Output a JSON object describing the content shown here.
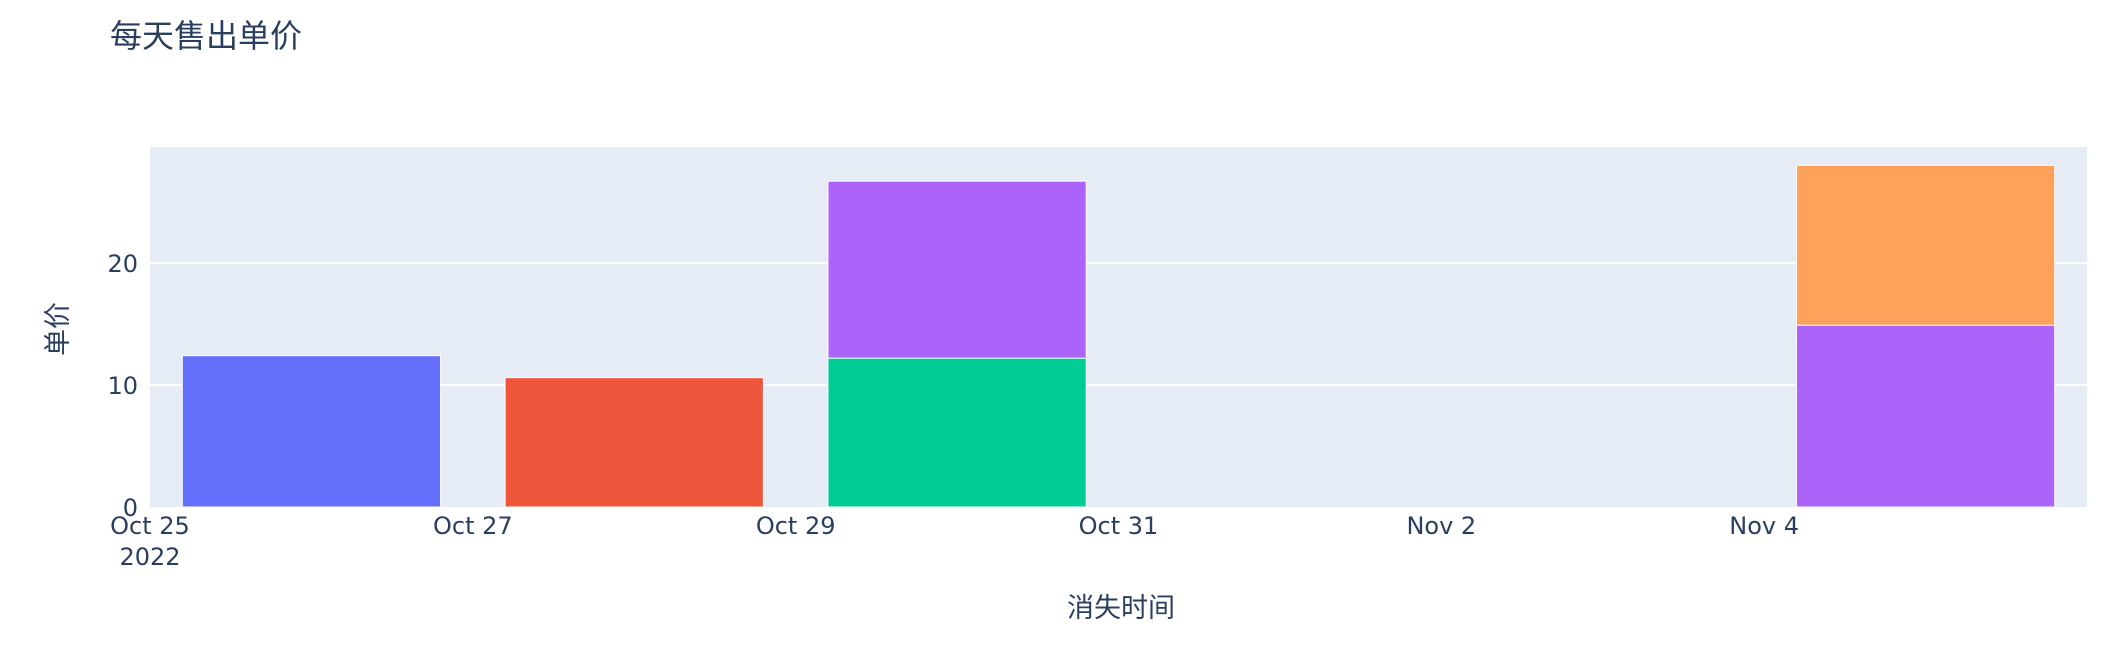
{
  "chart_data": {
    "type": "bar",
    "barmode": "stack",
    "title": "每天售出单价",
    "xlabel": "消失时间",
    "ylabel": "单价",
    "x_tick_labels": [
      "Oct 25",
      "Oct 27",
      "Oct 29",
      "Oct 31",
      "Nov 2",
      "Nov 4"
    ],
    "x_tick_dates": [
      "2022-10-25",
      "2022-10-27",
      "2022-10-29",
      "2022-10-31",
      "2022-11-02",
      "2022-11-04"
    ],
    "x_year_label": "2022",
    "y_ticks": [
      0,
      10,
      20
    ],
    "ylim": [
      0,
      29.5
    ],
    "xlim": [
      "2022-10-25",
      "2022-11-06"
    ],
    "grid": true,
    "background": "#e5ecf6",
    "bars": [
      {
        "date": "2022-10-26",
        "base": 0,
        "value": 12.4,
        "color": "#636efa"
      },
      {
        "date": "2022-10-28",
        "base": 0,
        "value": 10.6,
        "color": "#ef553b"
      },
      {
        "date": "2022-10-30",
        "base": 0,
        "value": 12.2,
        "color": "#00cc96"
      },
      {
        "date": "2022-10-30",
        "base": 12.2,
        "value": 14.5,
        "color": "#ab63fa"
      },
      {
        "date": "2022-11-05",
        "base": 0,
        "value": 14.9,
        "color": "#ab63fa"
      },
      {
        "date": "2022-11-05",
        "base": 14.9,
        "value": 13.1,
        "color": "#ffa15a"
      }
    ]
  }
}
